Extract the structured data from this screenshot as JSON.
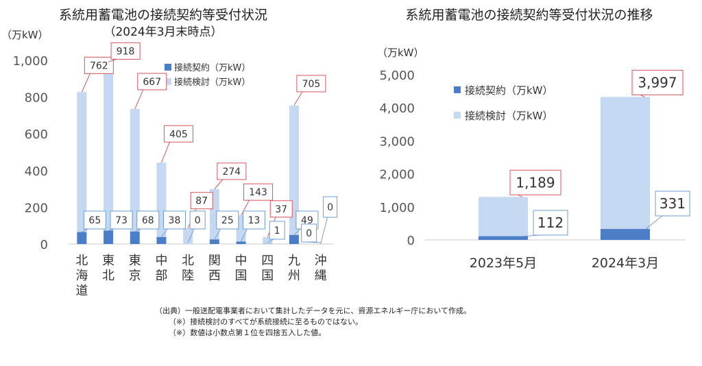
{
  "left_chart": {
    "title": "系統用蓄電池の接続契約等受付状況",
    "subtitle": "（2024年3月末時点）",
    "unit": "（万kW）",
    "legend": [
      "接続契約（万kW）",
      "接続検討（万kW）"
    ]
  },
  "right_chart": {
    "title": "系統用蓄電池の接続契約等受付状況の推移",
    "unit": "（万kW）",
    "legend": [
      "接続契約（万kW）",
      "接続検討（万kW）"
    ]
  },
  "notes": [
    "（出典）一般送配電事業者において集計したデータを元に、資源エネルギー庁において作成。",
    "（※）接続検討のすべてが系統接続に至るものではない。",
    "（※）数値は小数点第１位を四捨五入した値。"
  ],
  "colors": {
    "contract": "#4a7ec7",
    "study": "#c5d8f1",
    "contract_border": "#6a9bd3",
    "study_border": "#d9535b"
  },
  "chart_data": [
    {
      "type": "bar",
      "stacked": true,
      "categories": [
        "北海道",
        "東北",
        "東京",
        "中部",
        "北陸",
        "関西",
        "中国",
        "四国",
        "九州",
        "沖縄"
      ],
      "series": [
        {
          "name": "接続契約（万kW）",
          "values": [
            65,
            73,
            68,
            38,
            0,
            25,
            13,
            1,
            49,
            0
          ]
        },
        {
          "name": "接続検討（万kW）",
          "values": [
            762,
            918,
            667,
            405,
            87,
            274,
            143,
            37,
            705,
            0
          ]
        }
      ],
      "ylim": [
        0,
        1000
      ],
      "yticks": [
        "0",
        "200",
        "400",
        "600",
        "800",
        "1,000"
      ],
      "legend_position": "top-right",
      "grid": false
    },
    {
      "type": "bar",
      "stacked": true,
      "categories": [
        "2023年5月",
        "2024年3月"
      ],
      "series": [
        {
          "name": "接続契約（万kW）",
          "values": [
            112,
            331
          ]
        },
        {
          "name": "接続検討（万kW）",
          "values": [
            1189,
            3997
          ]
        }
      ],
      "ylim": [
        0,
        5000
      ],
      "yticks": [
        "0",
        "1,000",
        "2,000",
        "3,000",
        "4,000",
        "5,000"
      ],
      "legend_position": "top-left",
      "grid": false
    }
  ]
}
